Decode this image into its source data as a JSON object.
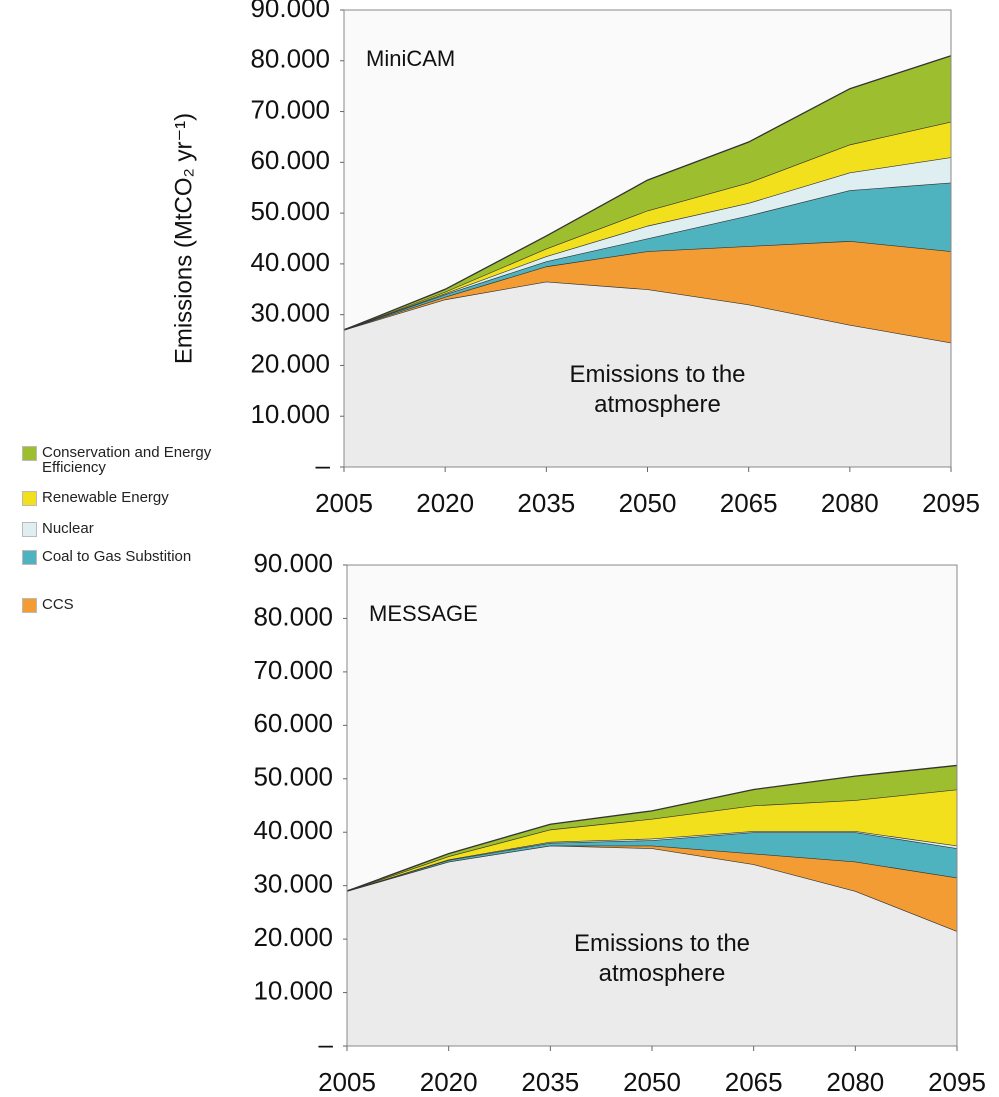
{
  "chart_data": [
    {
      "type": "stacked_area",
      "title": "MiniCAM",
      "y_label": "Emissions (MtCO₂ yr⁻¹)",
      "x": [
        2005,
        2020,
        2035,
        2050,
        2065,
        2080,
        2095
      ],
      "xlim": [
        2005,
        2095
      ],
      "xticks": [
        2005,
        2020,
        2035,
        2050,
        2065,
        2080,
        2095
      ],
      "ylim": [
        0,
        90000
      ],
      "yticks": [
        {
          "value": 0,
          "label": "–"
        },
        {
          "value": 10000,
          "label": "10.000"
        },
        {
          "value": 20000,
          "label": "20.000"
        },
        {
          "value": 30000,
          "label": "30.000"
        },
        {
          "value": 40000,
          "label": "40.000"
        },
        {
          "value": 50000,
          "label": "50.000"
        },
        {
          "value": 60000,
          "label": "60.000"
        },
        {
          "value": 70000,
          "label": "70.000"
        },
        {
          "value": 80000,
          "label": "80.000"
        },
        {
          "value": 90000,
          "label": "90.000"
        }
      ],
      "series": [
        {
          "name": "Emissions to the atmosphere",
          "color": "#ebebeb",
          "values": [
            27000,
            33000,
            36500,
            35000,
            32000,
            28000,
            24500
          ]
        },
        {
          "name": "CCS",
          "color": "#f39c33",
          "values": [
            0,
            500,
            3000,
            7500,
            11500,
            16500,
            18000
          ]
        },
        {
          "name": "Coal to Gas Substition",
          "color": "#4fb3bf",
          "values": [
            0,
            500,
            1000,
            2500,
            6000,
            10000,
            13500
          ]
        },
        {
          "name": "Nuclear",
          "color": "#dfeef0",
          "values": [
            0,
            200,
            1000,
            2500,
            2500,
            3500,
            5000
          ]
        },
        {
          "name": "Renewable Energy",
          "color": "#f2e01d",
          "values": [
            0,
            300,
            1500,
            3000,
            4000,
            5500,
            7000
          ]
        },
        {
          "name": "Conservation and Energy Efficiency",
          "color": "#9cbe2f",
          "values": [
            0,
            500,
            2500,
            6000,
            8000,
            11000,
            13000
          ]
        }
      ]
    },
    {
      "type": "stacked_area",
      "title": "MESSAGE",
      "x": [
        2005,
        2020,
        2035,
        2050,
        2065,
        2080,
        2095
      ],
      "xlim": [
        2005,
        2095
      ],
      "xticks": [
        2005,
        2020,
        2035,
        2050,
        2065,
        2080,
        2095
      ],
      "ylim": [
        0,
        90000
      ],
      "yticks": [
        {
          "value": 0,
          "label": "–"
        },
        {
          "value": 10000,
          "label": "10.000"
        },
        {
          "value": 20000,
          "label": "20.000"
        },
        {
          "value": 30000,
          "label": "30.000"
        },
        {
          "value": 40000,
          "label": "40.000"
        },
        {
          "value": 50000,
          "label": "50.000"
        },
        {
          "value": 60000,
          "label": "60.000"
        },
        {
          "value": 70000,
          "label": "70.000"
        },
        {
          "value": 80000,
          "label": "80.000"
        },
        {
          "value": 90000,
          "label": "90.000"
        }
      ],
      "series": [
        {
          "name": "Emissions to the atmosphere",
          "color": "#ebebeb",
          "values": [
            29000,
            34500,
            37500,
            37000,
            34000,
            29000,
            21500
          ]
        },
        {
          "color": "#f39c33",
          "values": [
            0,
            0,
            0,
            500,
            2000,
            5500,
            10000
          ]
        },
        {
          "color": "#4fb3bf",
          "values": [
            0,
            300,
            500,
            1000,
            4000,
            5500,
            5500
          ]
        },
        {
          "color": "#dfeef0",
          "values": [
            0,
            100,
            200,
            300,
            200,
            200,
            500
          ]
        },
        {
          "color": "#f2e01d",
          "values": [
            0,
            600,
            2300,
            3700,
            4800,
            5800,
            10500
          ]
        },
        {
          "color": "#9cbe2f",
          "values": [
            0,
            500,
            1000,
            1500,
            3000,
            4500,
            4500
          ]
        }
      ]
    }
  ]
}
